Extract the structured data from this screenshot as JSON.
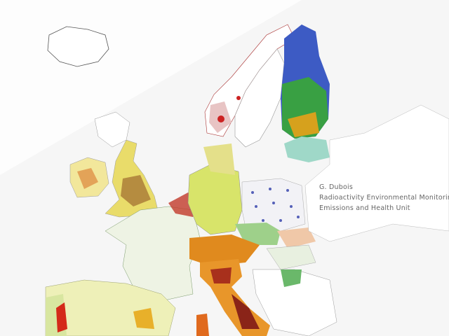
{
  "credit": {
    "author": "G. Dubois",
    "lines": [
      "Radioactivity Environmental Monitoring",
      "Emissions and Health Unit"
    ]
  }
}
